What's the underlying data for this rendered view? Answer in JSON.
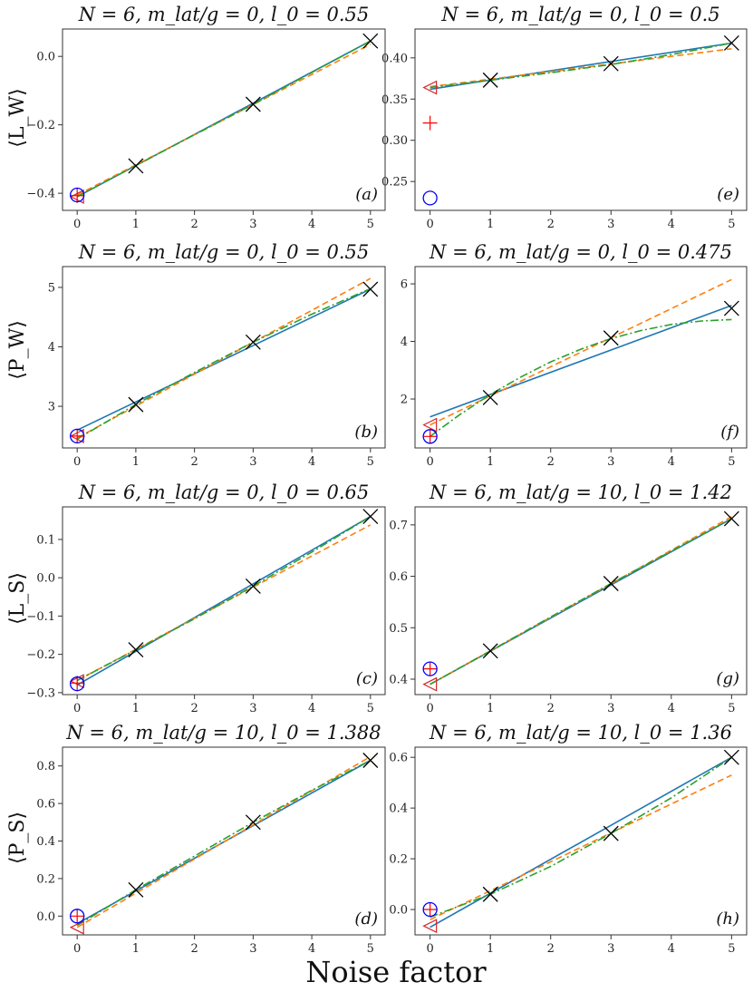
{
  "figure": {
    "xlabel": "Noise factor",
    "row_ylabels": [
      "⟨L_W⟩",
      "⟨P_W⟩",
      "⟨L_S⟩",
      "⟨P_S⟩"
    ]
  },
  "chart_data": [
    {
      "type": "line",
      "panel": "(a)",
      "title": "N = 6, m_lat/g = 0, l_0 = 0.55",
      "ylabel": "⟨L_W⟩",
      "xlim": [
        -0.25,
        5.25
      ],
      "ylim": [
        -0.45,
        0.08
      ],
      "xticks": [
        0,
        1,
        2,
        3,
        4,
        5
      ],
      "yticks": [
        -0.4,
        -0.2,
        0.0
      ],
      "ytick_labels": [
        "−0.4",
        "−0.2",
        "0.0"
      ],
      "noisy_points": {
        "x": [
          1,
          3,
          5
        ],
        "y": [
          -0.32,
          -0.14,
          0.045
        ]
      },
      "series": [
        {
          "x": [
            0,
            5
          ],
          "y": [
            -0.41,
            0.045
          ],
          "color": "#1f77b4",
          "style": "solid"
        },
        {
          "x": [
            0,
            5
          ],
          "y": [
            -0.405,
            0.035
          ],
          "color": "#ff7f0e",
          "style": "dashed"
        },
        {
          "x": [
            0,
            1,
            2,
            3,
            4,
            5
          ],
          "y": [
            -0.41,
            -0.319,
            -0.229,
            -0.14,
            -0.047,
            0.045
          ],
          "color": "#2ca02c",
          "style": "dashdot"
        }
      ],
      "extrapolated": {
        "circle": -0.405,
        "plus": -0.407,
        "triangle": -0.41
      }
    },
    {
      "type": "line",
      "panel": "(e)",
      "title": "N = 6, m_lat/g = 0, l_0 = 0.5",
      "ylabel": "",
      "xlim": [
        -0.25,
        5.25
      ],
      "ylim": [
        0.215,
        0.435
      ],
      "xticks": [
        0,
        1,
        2,
        3,
        4,
        5
      ],
      "yticks": [
        0.25,
        0.3,
        0.35,
        0.4
      ],
      "ytick_labels": [
        "0.25",
        "0.30",
        "0.35",
        "0.40"
      ],
      "noisy_points": {
        "x": [
          1,
          3,
          5
        ],
        "y": [
          0.373,
          0.393,
          0.418
        ]
      },
      "series": [
        {
          "x": [
            0,
            5
          ],
          "y": [
            0.362,
            0.418
          ],
          "color": "#1f77b4",
          "style": "solid"
        },
        {
          "x": [
            0,
            5
          ],
          "y": [
            0.365,
            0.411
          ],
          "color": "#ff7f0e",
          "style": "dashed"
        },
        {
          "x": [
            0,
            1,
            2,
            3,
            4,
            5
          ],
          "y": [
            0.364,
            0.373,
            0.382,
            0.392,
            0.404,
            0.418
          ],
          "color": "#2ca02c",
          "style": "dashdot"
        }
      ],
      "extrapolated": {
        "circle": 0.23,
        "plus": 0.321,
        "triangle": 0.364
      }
    },
    {
      "type": "line",
      "panel": "(b)",
      "title": "N = 6, m_lat/g = 0, l_0 = 0.55",
      "ylabel": "⟨P_W⟩",
      "xlim": [
        -0.25,
        5.25
      ],
      "ylim": [
        2.3,
        5.35
      ],
      "xticks": [
        0,
        1,
        2,
        3,
        4,
        5
      ],
      "yticks": [
        3,
        4,
        5
      ],
      "ytick_labels": [
        "3",
        "4",
        "5"
      ],
      "noisy_points": {
        "x": [
          1,
          3,
          5
        ],
        "y": [
          3.03,
          4.08,
          4.97
        ]
      },
      "series": [
        {
          "x": [
            0,
            5
          ],
          "y": [
            2.6,
            4.97
          ],
          "color": "#1f77b4",
          "style": "solid"
        },
        {
          "x": [
            0,
            5
          ],
          "y": [
            2.47,
            5.15
          ],
          "color": "#ff7f0e",
          "style": "dashed"
        },
        {
          "x": [
            0,
            1,
            2,
            3,
            4,
            5
          ],
          "y": [
            2.45,
            3.03,
            3.57,
            4.08,
            4.55,
            4.98
          ],
          "color": "#2ca02c",
          "style": "dashdot"
        }
      ],
      "extrapolated": {
        "circle": 2.5,
        "plus": 2.5,
        "triangle": 2.5
      }
    },
    {
      "type": "line",
      "panel": "(f)",
      "title": "N = 6, m_lat/g = 0, l_0 = 0.475",
      "ylabel": "",
      "xlim": [
        -0.25,
        5.25
      ],
      "ylim": [
        0.3,
        6.6
      ],
      "xticks": [
        0,
        1,
        2,
        3,
        4,
        5
      ],
      "yticks": [
        2,
        4,
        6
      ],
      "ytick_labels": [
        "2",
        "4",
        "6"
      ],
      "noisy_points": {
        "x": [
          1,
          3,
          5
        ],
        "y": [
          2.05,
          4.12,
          5.15
        ]
      },
      "series": [
        {
          "x": [
            0,
            5
          ],
          "y": [
            1.38,
            5.25
          ],
          "color": "#1f77b4",
          "style": "solid"
        },
        {
          "x": [
            0,
            5
          ],
          "y": [
            1.1,
            6.15
          ],
          "color": "#ff7f0e",
          "style": "dashed"
        },
        {
          "x": [
            0,
            0.5,
            1,
            1.5,
            2,
            2.5,
            3,
            3.5,
            4,
            4.5,
            5
          ],
          "y": [
            0.7,
            1.47,
            2.16,
            2.76,
            3.29,
            3.73,
            4.1,
            4.38,
            4.59,
            4.71,
            4.76
          ],
          "color": "#2ca02c",
          "style": "dashdot"
        }
      ],
      "extrapolated": {
        "circle": 0.7,
        "plus": 0.7,
        "triangle": 1.1
      }
    },
    {
      "type": "line",
      "panel": "(c)",
      "title": "N = 6, m_lat/g = 0, l_0 = 0.65",
      "ylabel": "⟨L_S⟩",
      "xlim": [
        -0.25,
        5.25
      ],
      "ylim": [
        -0.305,
        0.185
      ],
      "xticks": [
        0,
        1,
        2,
        3,
        4,
        5
      ],
      "yticks": [
        -0.3,
        -0.2,
        -0.1,
        0.0,
        0.1
      ],
      "ytick_labels": [
        "−0.3",
        "−0.2",
        "−0.1",
        "0.0",
        "0.1"
      ],
      "noisy_points": {
        "x": [
          1,
          3,
          5
        ],
        "y": [
          -0.188,
          -0.022,
          0.16
        ]
      },
      "series": [
        {
          "x": [
            0,
            5
          ],
          "y": [
            -0.28,
            0.16
          ],
          "color": "#1f77b4",
          "style": "solid"
        },
        {
          "x": [
            0,
            5
          ],
          "y": [
            -0.268,
            0.138
          ],
          "color": "#ff7f0e",
          "style": "dashed"
        },
        {
          "x": [
            0,
            1,
            2,
            3,
            4,
            5
          ],
          "y": [
            -0.268,
            -0.188,
            -0.107,
            -0.022,
            0.067,
            0.16
          ],
          "color": "#2ca02c",
          "style": "dashdot"
        }
      ],
      "extrapolated": {
        "circle": -0.277,
        "plus": -0.275,
        "triangle": -0.27
      }
    },
    {
      "type": "line",
      "panel": "(g)",
      "title": "N = 6, m_lat/g = 10, l_0 = 1.42",
      "ylabel": "",
      "xlim": [
        -0.25,
        5.25
      ],
      "ylim": [
        0.37,
        0.735
      ],
      "xticks": [
        0,
        1,
        2,
        3,
        4,
        5
      ],
      "yticks": [
        0.4,
        0.5,
        0.6,
        0.7
      ],
      "ytick_labels": [
        "0.4",
        "0.5",
        "0.6",
        "0.7"
      ],
      "noisy_points": {
        "x": [
          1,
          3,
          5
        ],
        "y": [
          0.455,
          0.586,
          0.712
        ]
      },
      "series": [
        {
          "x": [
            0,
            5
          ],
          "y": [
            0.39,
            0.712
          ],
          "color": "#1f77b4",
          "style": "solid"
        },
        {
          "x": [
            0,
            5
          ],
          "y": [
            0.39,
            0.716
          ],
          "color": "#ff7f0e",
          "style": "dashed"
        },
        {
          "x": [
            0,
            1,
            2,
            3,
            4,
            5
          ],
          "y": [
            0.39,
            0.455,
            0.521,
            0.586,
            0.649,
            0.712
          ],
          "color": "#2ca02c",
          "style": "dashdot"
        }
      ],
      "extrapolated": {
        "circle": 0.42,
        "plus": 0.42,
        "triangle": 0.39
      }
    },
    {
      "type": "line",
      "panel": "(d)",
      "title": "N = 6, m_lat/g = 10, l_0 = 1.388",
      "ylabel": "⟨P_S⟩",
      "xlim": [
        -0.25,
        5.25
      ],
      "ylim": [
        -0.1,
        0.9
      ],
      "xticks": [
        0,
        1,
        2,
        3,
        4,
        5
      ],
      "yticks": [
        0.0,
        0.2,
        0.4,
        0.6,
        0.8
      ],
      "ytick_labels": [
        "0.0",
        "0.2",
        "0.4",
        "0.6",
        "0.8"
      ],
      "noisy_points": {
        "x": [
          1,
          3,
          5
        ],
        "y": [
          0.14,
          0.5,
          0.83
        ]
      },
      "series": [
        {
          "x": [
            0,
            5
          ],
          "y": [
            -0.04,
            0.83
          ],
          "color": "#1f77b4",
          "style": "solid"
        },
        {
          "x": [
            0,
            5
          ],
          "y": [
            -0.06,
            0.85
          ],
          "color": "#ff7f0e",
          "style": "dashed"
        },
        {
          "x": [
            0,
            1,
            2,
            3,
            4,
            5
          ],
          "y": [
            -0.05,
            0.14,
            0.32,
            0.5,
            0.67,
            0.83
          ],
          "color": "#2ca02c",
          "style": "dashdot"
        }
      ],
      "extrapolated": {
        "circle": 0.0,
        "plus": 0.0,
        "triangle": -0.06
      }
    },
    {
      "type": "line",
      "panel": "(h)",
      "title": "N = 6, m_lat/g = 10, l_0 = 1.36",
      "ylabel": "",
      "xlim": [
        -0.25,
        5.25
      ],
      "ylim": [
        -0.1,
        0.64
      ],
      "xticks": [
        0,
        1,
        2,
        3,
        4,
        5
      ],
      "yticks": [
        0.0,
        0.2,
        0.4,
        0.6
      ],
      "ytick_labels": [
        "0.0",
        "0.2",
        "0.4",
        "0.6"
      ],
      "noisy_points": {
        "x": [
          1,
          3,
          5
        ],
        "y": [
          0.06,
          0.3,
          0.6
        ]
      },
      "series": [
        {
          "x": [
            0,
            5
          ],
          "y": [
            -0.07,
            0.6
          ],
          "color": "#1f77b4",
          "style": "solid"
        },
        {
          "x": [
            0,
            5
          ],
          "y": [
            -0.04,
            0.53
          ],
          "color": "#ff7f0e",
          "style": "dashed"
        },
        {
          "x": [
            0,
            1,
            2,
            3,
            4,
            5
          ],
          "y": [
            -0.03,
            0.06,
            0.17,
            0.3,
            0.44,
            0.6
          ],
          "color": "#2ca02c",
          "style": "dashdot"
        }
      ],
      "extrapolated": {
        "circle": 0.0,
        "plus": 0.0,
        "triangle": -0.065
      }
    }
  ]
}
